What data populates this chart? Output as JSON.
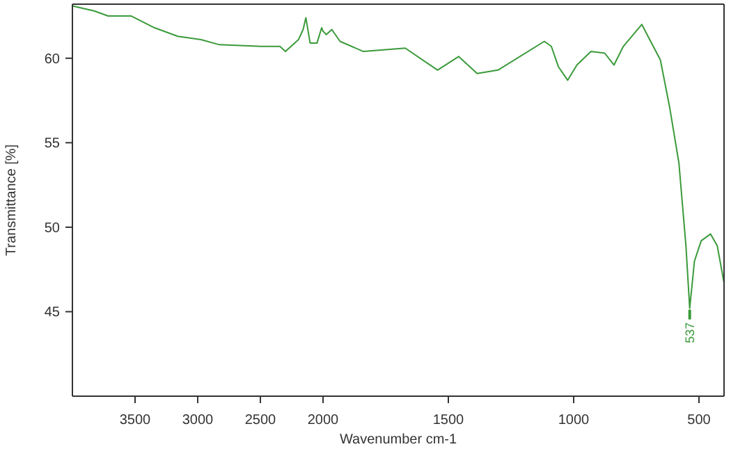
{
  "chart_data": [
    {
      "type": "line",
      "ylabel": "Transmittance [%]",
      "xlim": [
        4000,
        2000
      ],
      "ylim": [
        40,
        63.2
      ],
      "xticks": [
        3500,
        3000,
        2500
      ],
      "yticks": [
        45,
        50,
        55,
        60
      ],
      "tick_labels": "xy",
      "x": [
        4000,
        3826,
        3715,
        3530,
        3344,
        3159,
        2974,
        2826,
        2492,
        2344,
        2300,
        2196,
        2159,
        2137,
        2103,
        2048,
        2011,
        2000
      ],
      "series": [
        {
          "color": "#3a9a3a",
          "values": [
            63.1,
            62.8,
            62.5,
            62.5,
            61.8,
            61.3,
            61.1,
            60.8,
            60.7,
            60.7,
            60.4,
            61.1,
            61.7,
            62.4,
            60.9,
            60.9,
            61.8,
            61.6
          ]
        }
      ]
    },
    {
      "type": "line",
      "xlabel": "Wavenumber cm-1",
      "xlim": [
        2000,
        400
      ],
      "ylim": [
        40,
        63.2
      ],
      "xticks": [
        2000,
        1500,
        1000,
        500
      ],
      "tick_labels": "x",
      "x": [
        2000,
        1987,
        1965,
        1932,
        1839,
        1672,
        1543,
        1459,
        1385,
        1302,
        1117,
        1089,
        1061,
        1024,
        987,
        931,
        876,
        839,
        802,
        728,
        654,
        617,
        580,
        552,
        537,
        518,
        491,
        454,
        427,
        400
      ],
      "series": [
        {
          "color": "#3a9a3a",
          "values": [
            61.6,
            61.4,
            61.7,
            61.0,
            60.4,
            60.6,
            59.3,
            60.1,
            59.1,
            59.3,
            61.0,
            60.7,
            59.5,
            58.7,
            59.6,
            60.4,
            60.3,
            59.6,
            60.7,
            62.0,
            59.9,
            57.1,
            53.8,
            48.9,
            45.2,
            48.0,
            49.2,
            49.6,
            48.9,
            46.7
          ]
        }
      ],
      "annotations": [
        {
          "text": "537",
          "x": 537,
          "y": 45.2
        }
      ]
    }
  ]
}
